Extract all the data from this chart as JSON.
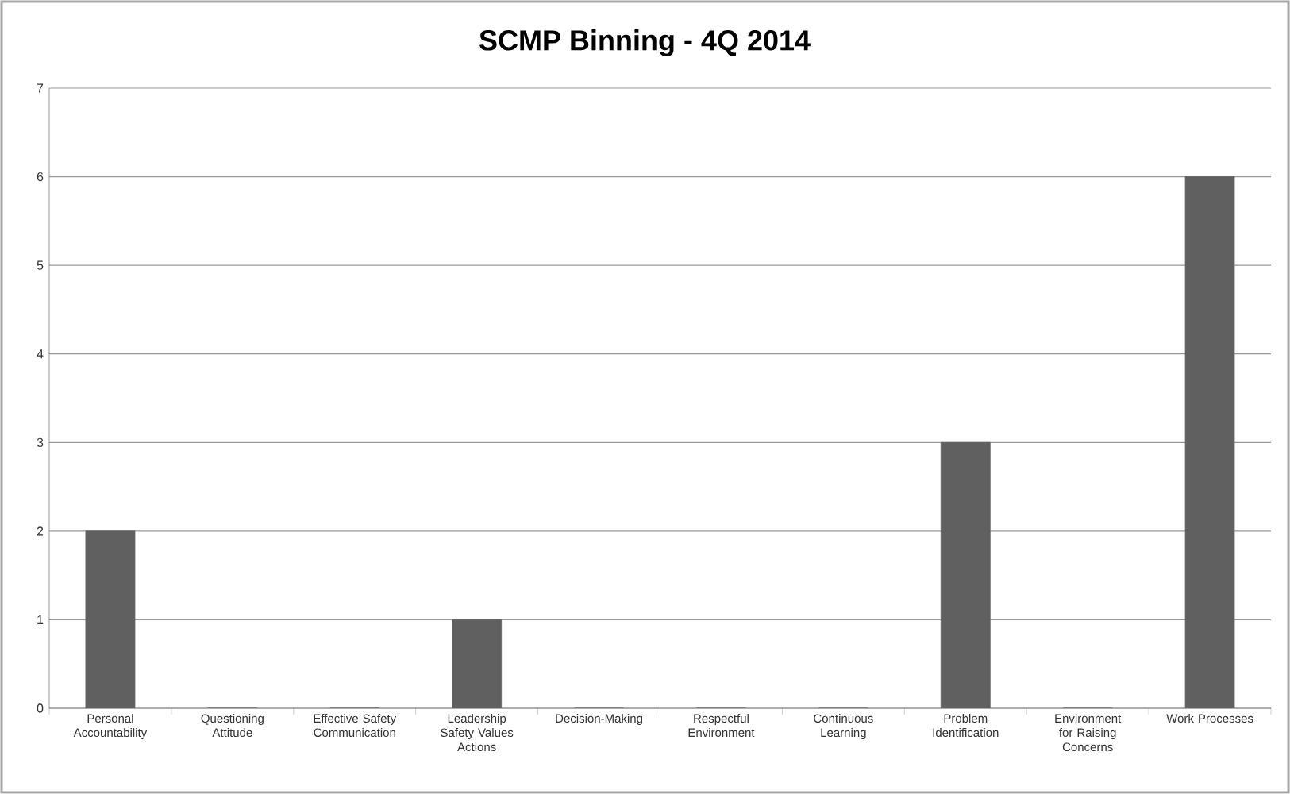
{
  "chart_data": {
    "type": "bar",
    "title": "SCMP Binning - 4Q 2014",
    "categories": [
      "Personal Accountability",
      "Questioning Attitude",
      "Effective Safety Communication",
      "Leadership Safety Values Actions",
      "Decision-Making",
      "Respectful Environment",
      "Continuous Learning",
      "Problem Identification",
      "Environment for Raising Concerns",
      "Work Processes"
    ],
    "values": [
      2,
      0,
      0,
      1,
      0,
      0,
      0,
      3,
      0,
      6
    ],
    "color": "#606060",
    "ylim": [
      0,
      7
    ],
    "yticks": [
      0,
      1,
      2,
      3,
      4,
      5,
      6,
      7
    ],
    "grid": "y"
  }
}
